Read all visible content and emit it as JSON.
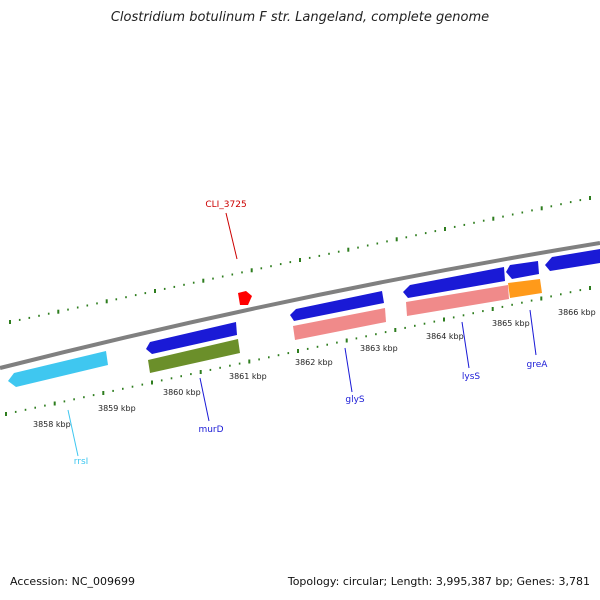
{
  "title": "Clostridium botulinum F str. Langeland, complete genome",
  "footer": {
    "accession": "Accession: NC_009699",
    "stats": "Topology: circular; Length: 3,995,387 bp; Genes: 3,781"
  },
  "colors": {
    "backbone": "#808080",
    "ticks": "#2e7d1e",
    "forward_cds": "#1a1ad6",
    "reverse_blue": "#1a1ad6",
    "trna": "#3fc7f0",
    "misc": "#6b8f2a",
    "rrna": "#f08a8a",
    "orange": "#ff9a1a",
    "marker": "#ff0000"
  },
  "scale": {
    "tick_labels": [
      "3858 kbp",
      "3859 kbp",
      "3860 kbp",
      "3861 kbp",
      "3862 kbp",
      "3863 kbp",
      "3864 kbp",
      "3865 kbp",
      "3866 kbp"
    ]
  },
  "gene_labels": [
    {
      "id": "CLI_3725",
      "text": "CLI_3725",
      "color": "#cc0000"
    },
    {
      "id": "rrsI",
      "text": "rrsI",
      "color": "#3fc7f0"
    },
    {
      "id": "murD",
      "text": "murD",
      "color": "#1a1ad6"
    },
    {
      "id": "glyS",
      "text": "glyS",
      "color": "#1a1ad6"
    },
    {
      "id": "lysS",
      "text": "lysS",
      "color": "#1a1ad6"
    },
    {
      "id": "greA",
      "text": "greA",
      "color": "#1a1ad6"
    }
  ]
}
